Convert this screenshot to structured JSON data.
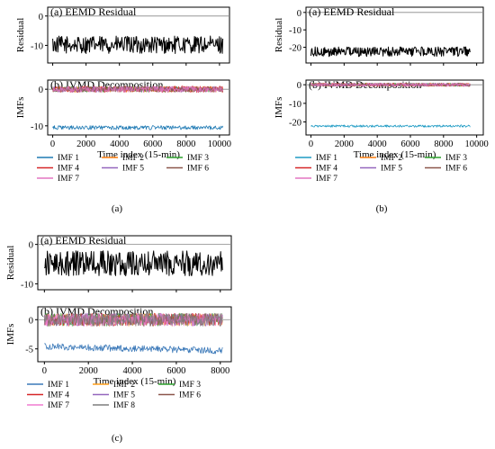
{
  "chart_data": [
    {
      "id": "a",
      "caption": "(a)",
      "x_axis": {
        "label": "Time index (15-min)",
        "range": [
          -300,
          10600
        ],
        "ticks": [
          0,
          2000,
          4000,
          6000,
          8000,
          10000
        ]
      },
      "residual": {
        "title": "(a) EEMD Residual",
        "ylabel": "Residual",
        "type": "line",
        "ylim": [
          -16,
          3
        ],
        "yticks": [
          0,
          -10
        ],
        "hline": 0,
        "series": {
          "color": "#000000",
          "x_range": [
            0,
            10200
          ],
          "mean": -9.8,
          "amplitude": 3
        }
      },
      "ivmd": {
        "title": "(b) IVMD Decomposition",
        "ylabel": "IMFs",
        "type": "line",
        "ylim": [
          -12.5,
          2.5
        ],
        "yticks": [
          0,
          -10
        ],
        "hline": 0,
        "x_range": [
          0,
          10200
        ],
        "series": [
          {
            "name": "IMF 1",
            "color": "#1f7ab4",
            "mean": -10.5,
            "amplitude": 0.55
          },
          {
            "name": "IMF 2",
            "color": "#ff7f0e",
            "mean": 0,
            "amplitude": 0.8
          },
          {
            "name": "IMF 3",
            "color": "#2ca02c",
            "mean": 0,
            "amplitude": 0.8
          },
          {
            "name": "IMF 4",
            "color": "#d62728",
            "mean": 0,
            "amplitude": 0.9
          },
          {
            "name": "IMF 5",
            "color": "#9467bd",
            "mean": 0,
            "amplitude": 0.8
          },
          {
            "name": "IMF 6",
            "color": "#8c564b",
            "mean": 0,
            "amplitude": 0.8
          },
          {
            "name": "IMF 7",
            "color": "#e377c2",
            "mean": 0,
            "amplitude": 0.8
          }
        ]
      }
    },
    {
      "id": "b",
      "caption": "(b)",
      "x_axis": {
        "label": "Time index (15-min)",
        "range": [
          -300,
          10400
        ],
        "ticks": [
          0,
          2000,
          4000,
          6000,
          8000,
          10000
        ]
      },
      "residual": {
        "title": "(a) EEMD Residual",
        "ylabel": "Residual",
        "type": "line",
        "ylim": [
          -29,
          3
        ],
        "yticks": [
          0,
          -10,
          -20
        ],
        "hline": 0,
        "series": {
          "color": "#000000",
          "x_range": [
            0,
            9600
          ],
          "mean": -22.5,
          "amplitude": 2.8
        }
      },
      "ivmd": {
        "title": "(b) IVMD Decomposition",
        "ylabel": "IMFs",
        "type": "line",
        "ylim": [
          -27,
          2.5
        ],
        "yticks": [
          0,
          -10,
          -20
        ],
        "hline": 0,
        "x_range": [
          0,
          9600
        ],
        "series": [
          {
            "name": "IMF 1",
            "color": "#1f9bc4",
            "mean": -22.2,
            "amplitude": 0.6
          },
          {
            "name": "IMF 2",
            "color": "#ff7f0e",
            "mean": 0,
            "amplitude": 0.9
          },
          {
            "name": "IMF 3",
            "color": "#2ca02c",
            "mean": 0,
            "amplitude": 0.9
          },
          {
            "name": "IMF 4",
            "color": "#d62728",
            "mean": 0,
            "amplitude": 0.9
          },
          {
            "name": "IMF 5",
            "color": "#9467bd",
            "mean": 0,
            "amplitude": 0.9
          },
          {
            "name": "IMF 6",
            "color": "#8c564b",
            "mean": 0,
            "amplitude": 0.9
          },
          {
            "name": "IMF 7",
            "color": "#e377c2",
            "mean": 0,
            "amplitude": 0.9
          }
        ]
      }
    },
    {
      "id": "c",
      "caption": "(c)",
      "x_axis": {
        "label": "Time index (15-min)",
        "range": [
          -300,
          8500
        ],
        "ticks": [
          0,
          2000,
          4000,
          6000,
          8000
        ]
      },
      "residual": {
        "title": "(a) EEMD Residual",
        "ylabel": "Residual",
        "type": "line",
        "ylim": [
          -11.5,
          2.2
        ],
        "yticks": [
          0,
          -10
        ],
        "hline": 0,
        "series": {
          "color": "#000000",
          "x_range": [
            0,
            8100
          ],
          "mean": -4.8,
          "amplitude": 3.2
        }
      },
      "ivmd": {
        "title": "(b) IVMD Decomposition",
        "ylabel": "IMFs",
        "type": "line",
        "ylim": [
          -7.2,
          2.2
        ],
        "yticks": [
          0,
          -5
        ],
        "hline": 0,
        "x_range": [
          0,
          8100
        ],
        "series": [
          {
            "name": "IMF 1",
            "color": "#3a78b8",
            "mean": -4.6,
            "amplitude": 0.55,
            "trend": -0.7
          },
          {
            "name": "IMF 2",
            "color": "#ff9f1a",
            "mean": 0,
            "amplitude": 1.1
          },
          {
            "name": "IMF 3",
            "color": "#2ca02c",
            "mean": 0,
            "amplitude": 1.1
          },
          {
            "name": "IMF 4",
            "color": "#d62728",
            "mean": 0,
            "amplitude": 1.1
          },
          {
            "name": "IMF 5",
            "color": "#9467bd",
            "mean": 0,
            "amplitude": 1.1
          },
          {
            "name": "IMF 6",
            "color": "#8c564b",
            "mean": 0,
            "amplitude": 1.1
          },
          {
            "name": "IMF 7",
            "color": "#f07bd0",
            "mean": 0,
            "amplitude": 1.1
          },
          {
            "name": "IMF 8",
            "color": "#7f7f7f",
            "mean": 0,
            "amplitude": 1.1
          }
        ]
      }
    }
  ]
}
